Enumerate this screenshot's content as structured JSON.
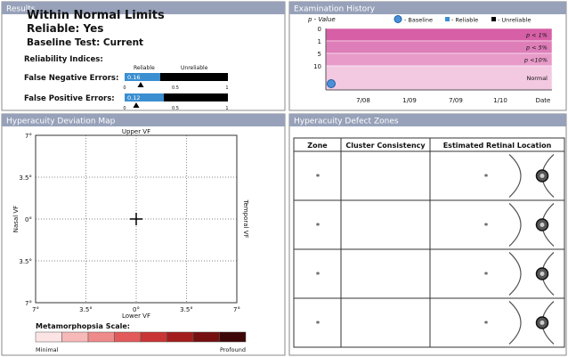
{
  "results": {
    "title": "Results",
    "status": "Within Normal Limits",
    "reliable": "Reliable: Yes",
    "baseline": "Baseline Test: Current",
    "reliability_indices": "Reliability Indices:",
    "reliable_label": "Reliable",
    "unreliable_label": "Unreliable",
    "false_negative": {
      "label": "False Negative Errors:",
      "value": "0.16"
    },
    "false_positive": {
      "label": "False Positive Errors:",
      "value": "0.12"
    },
    "scale_ticks": [
      "0",
      "0.5",
      "1"
    ]
  },
  "exam_history": {
    "title": "Examination History",
    "p_value_label": "p - Value",
    "legend": [
      "- Baseline",
      "- Reliable",
      "- Unreliable"
    ],
    "y_labels": [
      "0",
      "1",
      "5",
      "10"
    ],
    "bands": [
      "p < 1%",
      "p < 5%",
      "p <10%",
      "Normal"
    ],
    "x_labels": [
      "7/08",
      "1/09",
      "7/09",
      "1/10",
      "Date"
    ]
  },
  "deviation_map": {
    "title": "Hyperacuity Deviation Map",
    "top": "Upper VF",
    "bottom": "Lower VF",
    "left": "Nasal VF",
    "right": "Temporal VF",
    "y_labels": [
      "7°",
      "3.5°",
      "0°",
      "3.5°",
      "7°"
    ],
    "x_labels": [
      "7°",
      "3.5°",
      "0°",
      "3.5°",
      "7°"
    ],
    "scale_title": "Metamorphopsia Scale:",
    "scale_min": "Minimal",
    "scale_max": "Profound"
  },
  "defect_zones": {
    "title": "Hyperacuity Defect Zones",
    "columns": [
      "Zone",
      "Cluster Consistency",
      "Estimated Retinal Location"
    ],
    "rows": [
      {
        "zone": "*",
        "location": "*"
      },
      {
        "zone": "*",
        "location": "*"
      },
      {
        "zone": "*",
        "location": "*"
      },
      {
        "zone": "*",
        "location": "*"
      }
    ]
  }
}
